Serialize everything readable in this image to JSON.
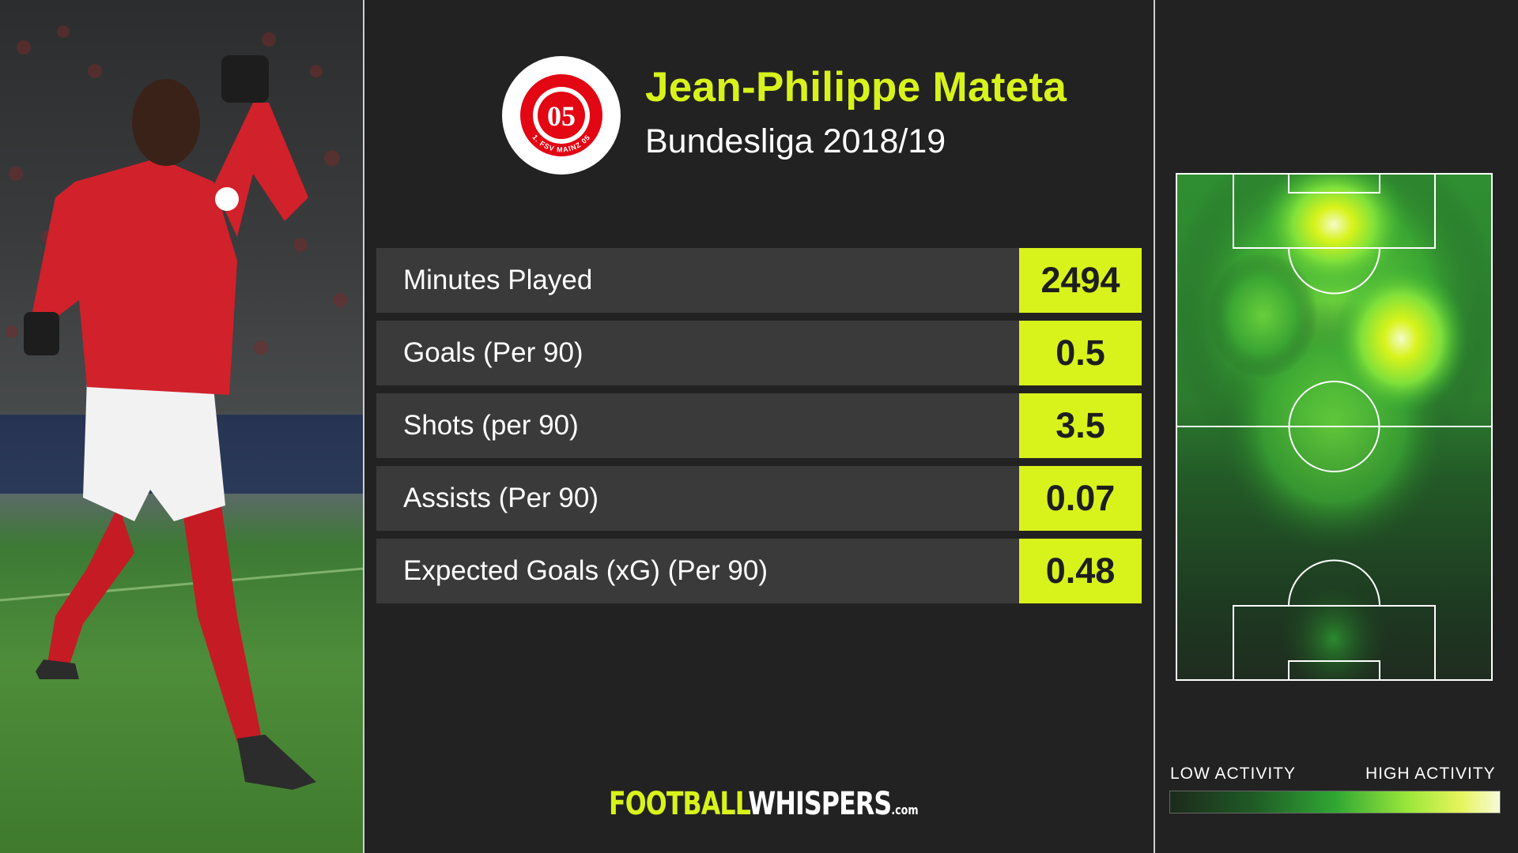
{
  "player": {
    "name": "Jean-Philippe Mateta",
    "season": "Bundesliga 2018/19"
  },
  "club_badge": {
    "monogram": "05",
    "ring_text": "1. FSV MAINZ 05",
    "color": "#e30613"
  },
  "stats": [
    {
      "label": "Minutes Played",
      "value": "2494"
    },
    {
      "label": "Goals (Per 90)",
      "value": "0.5"
    },
    {
      "label": "Shots (per 90)",
      "value": "3.5"
    },
    {
      "label": "Assists (Per 90)",
      "value": "0.07"
    },
    {
      "label": "Expected Goals (xG) (Per 90)",
      "value": "0.48"
    }
  ],
  "heatmap": {
    "legend_low": "LOW ACTIVITY",
    "legend_high": "HIGH ACTIVITY"
  },
  "brand": {
    "football": "FOOTBALL",
    "whispers": "WHISPERS",
    "suffix": ".com"
  },
  "colors": {
    "accent": "#d8f31b",
    "background": "#222222",
    "row": "#3a3a3a"
  }
}
